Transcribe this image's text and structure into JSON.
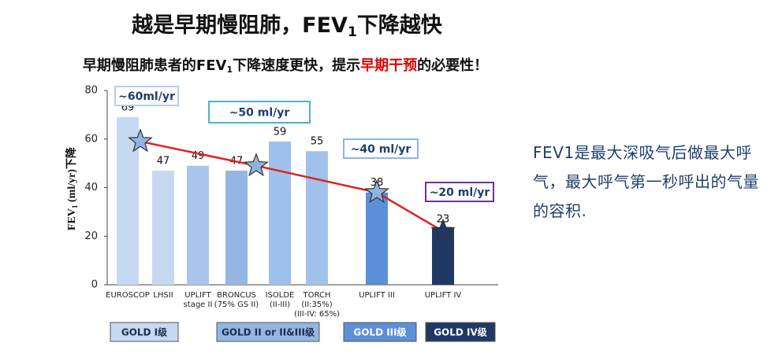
{
  "chart_data": {
    "type": "bar",
    "title": [
      "越是早期慢阻肺，FEV",
      "1",
      "下降越快"
    ],
    "subtitle": [
      "早期慢阻肺患者的FEV",
      "1",
      "下降速度更快，提示",
      "早期干预",
      "的必要性！"
    ],
    "highlight_color": "#e00000",
    "y_label": [
      "FEV",
      "1",
      " (ml/yr)下降"
    ],
    "categories": [
      [
        "EUROSCOP"
      ],
      [
        "LHSII"
      ],
      [
        "UPLIFT",
        "stage II"
      ],
      [
        "BRONCUS",
        "(75% GS II)"
      ],
      [
        "ISOLDE",
        "(II-III)"
      ],
      [
        "TORCH",
        "(II:35%)",
        "(III-IV: 65%)"
      ],
      [
        "UPLIFT III"
      ],
      [
        "UPLIFT IV"
      ]
    ],
    "values": [
      69,
      47,
      49,
      47,
      59,
      55,
      38,
      23
    ],
    "colors": [
      "#c6d9f1",
      "#c6d9f1",
      "#a9c5ec",
      "#93b6e2",
      "#9fc0ea",
      "#a2c1ea",
      "#5b8fd8",
      "#1f3864"
    ],
    "ylim": [
      0,
      80
    ],
    "yticks": [
      0,
      20,
      40,
      60,
      80
    ],
    "trend": {
      "color": "#e02020",
      "marker_color": "#8fb4e3",
      "values": [
        59,
        49,
        38,
        22
      ],
      "labels": [
        "~60ml/yr",
        "~50 ml/yr",
        "~40 ml/yr",
        "~20 ml/yr"
      ],
      "label_borders": [
        "#b7cde8",
        "#4bb3c7",
        "#8fb4e3",
        "#7030a0"
      ]
    },
    "groups": [
      {
        "label": "GOLD I级",
        "color": "#c6d9f1",
        "text_color": "#1f2d50"
      },
      {
        "label": "GOLD II or II&III级",
        "color": "#93b6e2",
        "text_color": "#1f2d50"
      },
      {
        "label": "GOLD III级",
        "color": "#5b8fd8",
        "text_color": "#ffffff"
      },
      {
        "label": "GOLD IV级",
        "color": "#1f3864",
        "text_color": "#ffffff"
      }
    ],
    "note": "FEV1是最大深吸气后做最大呼气，最大呼气第一秒呼出的气量的容积."
  }
}
